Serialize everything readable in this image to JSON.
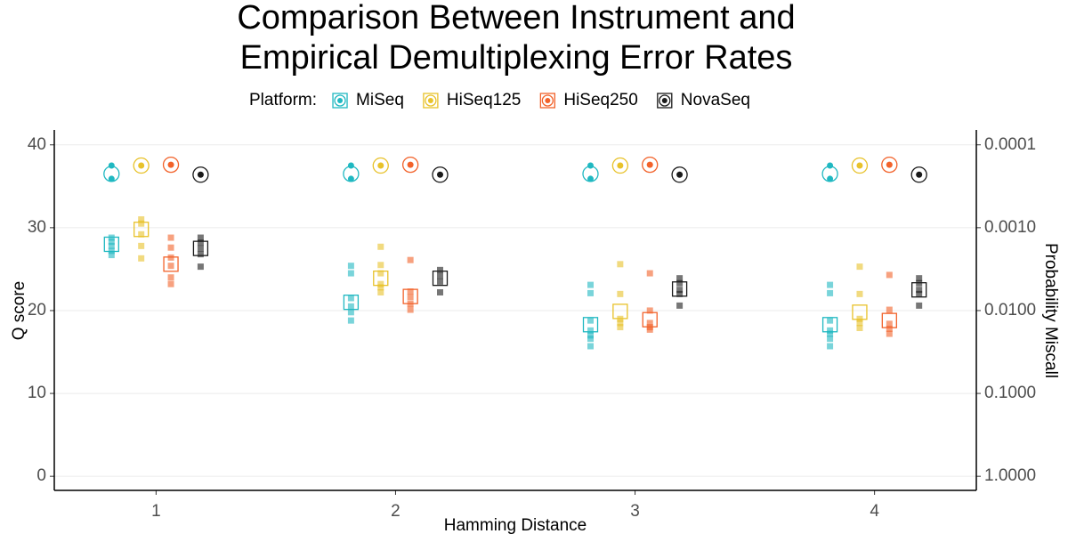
{
  "chart_data": {
    "type": "dodged-points",
    "title": [
      "Comparison Between Instrument and",
      "Empirical Demultiplexing Error Rates"
    ],
    "legend_title": "Platform:",
    "legend_position": "top",
    "x_label": "Hamming Distance",
    "y_label": "Q score",
    "y2_label": "Probability Miscall",
    "categories": [
      "1",
      "2",
      "3",
      "4"
    ],
    "ylim": [
      -1.7,
      41.8
    ],
    "yticks": [
      0,
      10,
      20,
      30,
      40
    ],
    "y2lim": [
      1.479,
      6.61e-05
    ],
    "y2log": true,
    "y2ticks": [
      {
        "value": 0.0001,
        "label": "0.0001"
      },
      {
        "value": 0.001,
        "label": "0.0010"
      },
      {
        "value": 0.01,
        "label": "0.0100"
      },
      {
        "value": 0.1,
        "label": "0.1000"
      },
      {
        "value": 1,
        "label": "1.0000"
      }
    ],
    "grid": true,
    "series": [
      {
        "name": "MiSeq",
        "color": "#1fb8c1",
        "instrument": [
          36.5,
          36.5,
          36.5,
          36.5
        ],
        "instrument_runs": [
          [
            37.5,
            35.9
          ],
          [
            37.5,
            35.9
          ],
          [
            37.5,
            35.9
          ],
          [
            37.5,
            35.9
          ]
        ],
        "values": [
          28,
          21,
          18.3,
          18.3
        ],
        "runs": [
          [
            28.8,
            28.3,
            27.8,
            27.2,
            26.7
          ],
          [
            25.4,
            24.5,
            21.5,
            20.5,
            19.8,
            18.8
          ],
          [
            23.1,
            22.1,
            18.8,
            17.6,
            17,
            16.6,
            15.7
          ],
          [
            23.1,
            22.1,
            18.8,
            17.6,
            17.2,
            16.6,
            15.7
          ]
        ]
      },
      {
        "name": "HiSeq125",
        "color": "#e8c22a",
        "instrument": [
          37.5,
          37.5,
          37.5,
          37.5
        ],
        "instrument_runs": [
          [
            37.5
          ],
          [
            37.5
          ],
          [
            37.5
          ],
          [
            37.5
          ]
        ],
        "values": [
          29.8,
          23.9,
          19.9,
          19.8
        ],
        "runs": [
          [
            31,
            30.5,
            29.2,
            27.8,
            26.3
          ],
          [
            27.7,
            25.5,
            24.5,
            23.2,
            22.8,
            22.2
          ],
          [
            25.6,
            22,
            19,
            18.5,
            18
          ],
          [
            25.3,
            22,
            19,
            18.5,
            17.9
          ]
        ]
      },
      {
        "name": "HiSeq250",
        "color": "#f2622a",
        "instrument": [
          37.6,
          37.6,
          37.6,
          37.6
        ],
        "instrument_runs": [
          [
            37.6
          ],
          [
            37.6
          ],
          [
            37.6
          ],
          [
            37.6
          ]
        ],
        "values": [
          25.6,
          21.7,
          18.9,
          18.8
        ],
        "runs": [
          [
            28.8,
            27.6,
            26.4,
            25.4,
            24,
            23.2
          ],
          [
            26.1,
            22.3,
            21.6,
            20.8,
            20.1
          ],
          [
            24.5,
            20,
            18.5,
            18,
            17.7
          ],
          [
            24.3,
            20.1,
            18.4,
            17.8,
            17.2
          ]
        ]
      },
      {
        "name": "NovaSeq",
        "color": "#1a1a1a",
        "instrument": [
          36.4,
          36.4,
          36.4,
          36.4
        ],
        "instrument_runs": [
          [
            36.4
          ],
          [
            36.4
          ],
          [
            36.4
          ],
          [
            36.4
          ]
        ],
        "values": [
          27.5,
          23.9,
          22.6,
          22.5
        ],
        "runs": [
          [
            28.8,
            28.2,
            27.5,
            26.8,
            25.3
          ],
          [
            24.9,
            24.2,
            23.5,
            22.2
          ],
          [
            23.9,
            23.3,
            22.5,
            22,
            20.6
          ],
          [
            23.9,
            23.3,
            22.5,
            22,
            20.6
          ]
        ]
      }
    ]
  }
}
